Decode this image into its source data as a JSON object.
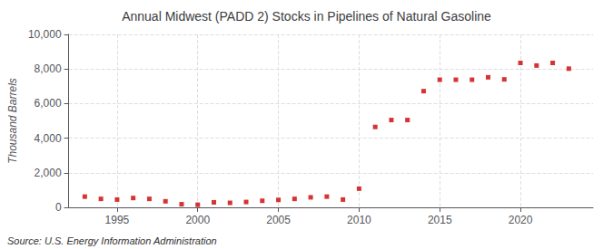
{
  "chart_data": {
    "type": "scatter",
    "title": "Annual Midwest (PADD 2) Stocks in Pipelines of Natural Gasoline",
    "ylabel": "Thousand Barrels",
    "source": "Source: U.S. Energy Information Administration",
    "color": "#cc0000",
    "marker": "square",
    "x": [
      1993,
      1994,
      1995,
      1996,
      1997,
      1998,
      1999,
      2000,
      2001,
      2002,
      2003,
      2004,
      2005,
      2006,
      2007,
      2008,
      2009,
      2010,
      2011,
      2012,
      2013,
      2014,
      2015,
      2016,
      2017,
      2018,
      2019,
      2020,
      2021,
      2022,
      2023
    ],
    "values": [
      620,
      490,
      450,
      540,
      490,
      350,
      180,
      150,
      290,
      260,
      310,
      380,
      430,
      490,
      580,
      620,
      450,
      1080,
      4650,
      5050,
      5050,
      6720,
      7380,
      7380,
      7380,
      7520,
      7400,
      8350,
      8200,
      8350,
      8020
    ],
    "xlim": [
      1992,
      2024.5
    ],
    "xticks": [
      1995,
      2000,
      2005,
      2010,
      2015,
      2020
    ],
    "ylim": [
      0,
      10000
    ],
    "yticks": [
      0,
      {
        "value": 2000,
        "label": "2,000"
      },
      {
        "value": 4000,
        "label": "4,000"
      },
      {
        "value": 6000,
        "label": "6,000"
      },
      {
        "value": 8000,
        "label": "8,000"
      },
      {
        "value": 10000,
        "label": "10,000"
      }
    ],
    "grid": true
  }
}
